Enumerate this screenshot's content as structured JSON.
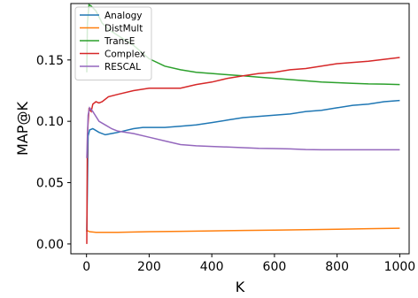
{
  "chart_data": {
    "type": "line",
    "xlabel": "K",
    "ylabel": "MAP@K",
    "xlim": [
      -50,
      1030
    ],
    "ylim": [
      -0.008,
      0.196
    ],
    "xticks": [
      0,
      200,
      400,
      600,
      800,
      1000
    ],
    "xtick_labels": [
      "0",
      "200",
      "400",
      "600",
      "800",
      "1000"
    ],
    "yticks": [
      0.0,
      0.05,
      0.1,
      0.15
    ],
    "ytick_labels": [
      "0.00",
      "0.05",
      "0.10",
      "0.15"
    ],
    "grid": false,
    "legend_position": "top-left",
    "series": [
      {
        "name": "Analogy",
        "color": "#1f77b4",
        "points": [
          [
            1,
            0.01
          ],
          [
            5,
            0.088
          ],
          [
            10,
            0.093
          ],
          [
            20,
            0.094
          ],
          [
            40,
            0.091
          ],
          [
            60,
            0.089
          ],
          [
            80,
            0.09
          ],
          [
            100,
            0.091
          ],
          [
            150,
            0.094
          ],
          [
            180,
            0.095
          ],
          [
            200,
            0.095
          ],
          [
            250,
            0.095
          ],
          [
            300,
            0.096
          ],
          [
            350,
            0.097
          ],
          [
            400,
            0.099
          ],
          [
            450,
            0.101
          ],
          [
            500,
            0.103
          ],
          [
            550,
            0.104
          ],
          [
            600,
            0.105
          ],
          [
            650,
            0.106
          ],
          [
            700,
            0.108
          ],
          [
            750,
            0.109
          ],
          [
            800,
            0.111
          ],
          [
            850,
            0.113
          ],
          [
            900,
            0.114
          ],
          [
            950,
            0.116
          ],
          [
            1000,
            0.117
          ]
        ]
      },
      {
        "name": "DistMult",
        "color": "#ff7f0e",
        "points": [
          [
            1,
            0.011
          ],
          [
            10,
            0.01
          ],
          [
            30,
            0.0095
          ],
          [
            100,
            0.0095
          ],
          [
            200,
            0.01
          ],
          [
            300,
            0.0103
          ],
          [
            400,
            0.0107
          ],
          [
            500,
            0.011
          ],
          [
            600,
            0.0113
          ],
          [
            700,
            0.0117
          ],
          [
            800,
            0.012
          ],
          [
            900,
            0.0125
          ],
          [
            1000,
            0.0128
          ]
        ]
      },
      {
        "name": "TransE",
        "color": "#2ca02c",
        "points": [
          [
            1,
            0.14
          ],
          [
            3,
            0.18
          ],
          [
            8,
            0.195
          ],
          [
            15,
            0.194
          ],
          [
            30,
            0.19
          ],
          [
            50,
            0.18
          ],
          [
            70,
            0.175
          ],
          [
            100,
            0.17
          ],
          [
            150,
            0.162
          ],
          [
            200,
            0.151
          ],
          [
            250,
            0.145
          ],
          [
            300,
            0.142
          ],
          [
            350,
            0.14
          ],
          [
            400,
            0.139
          ],
          [
            450,
            0.138
          ],
          [
            500,
            0.137
          ],
          [
            550,
            0.136
          ],
          [
            600,
            0.135
          ],
          [
            650,
            0.134
          ],
          [
            700,
            0.133
          ],
          [
            750,
            0.132
          ],
          [
            800,
            0.1315
          ],
          [
            850,
            0.131
          ],
          [
            900,
            0.1305
          ],
          [
            950,
            0.1303
          ],
          [
            1000,
            0.13
          ]
        ]
      },
      {
        "name": "Complex",
        "color": "#d62728",
        "points": [
          [
            1,
            0.0
          ],
          [
            3,
            0.09
          ],
          [
            8,
            0.11
          ],
          [
            15,
            0.108
          ],
          [
            20,
            0.114
          ],
          [
            30,
            0.116
          ],
          [
            40,
            0.115
          ],
          [
            50,
            0.116
          ],
          [
            70,
            0.12
          ],
          [
            100,
            0.122
          ],
          [
            150,
            0.125
          ],
          [
            200,
            0.127
          ],
          [
            250,
            0.127
          ],
          [
            300,
            0.127
          ],
          [
            350,
            0.13
          ],
          [
            400,
            0.132
          ],
          [
            450,
            0.135
          ],
          [
            500,
            0.137
          ],
          [
            550,
            0.139
          ],
          [
            600,
            0.14
          ],
          [
            650,
            0.142
          ],
          [
            700,
            0.143
          ],
          [
            750,
            0.145
          ],
          [
            800,
            0.147
          ],
          [
            850,
            0.148
          ],
          [
            900,
            0.149
          ],
          [
            950,
            0.1505
          ],
          [
            1000,
            0.152
          ]
        ]
      },
      {
        "name": "RESCAL",
        "color": "#9467bd",
        "points": [
          [
            1,
            0.07
          ],
          [
            5,
            0.105
          ],
          [
            10,
            0.111
          ],
          [
            20,
            0.108
          ],
          [
            40,
            0.1
          ],
          [
            60,
            0.097
          ],
          [
            80,
            0.094
          ],
          [
            100,
            0.092
          ],
          [
            150,
            0.09
          ],
          [
            200,
            0.087
          ],
          [
            250,
            0.084
          ],
          [
            300,
            0.081
          ],
          [
            350,
            0.08
          ],
          [
            400,
            0.0795
          ],
          [
            450,
            0.079
          ],
          [
            500,
            0.0785
          ],
          [
            550,
            0.078
          ],
          [
            600,
            0.0778
          ],
          [
            650,
            0.0775
          ],
          [
            700,
            0.077
          ],
          [
            750,
            0.0768
          ],
          [
            800,
            0.0768
          ],
          [
            850,
            0.0768
          ],
          [
            900,
            0.0768
          ],
          [
            950,
            0.0768
          ],
          [
            1000,
            0.0768
          ]
        ]
      }
    ]
  }
}
